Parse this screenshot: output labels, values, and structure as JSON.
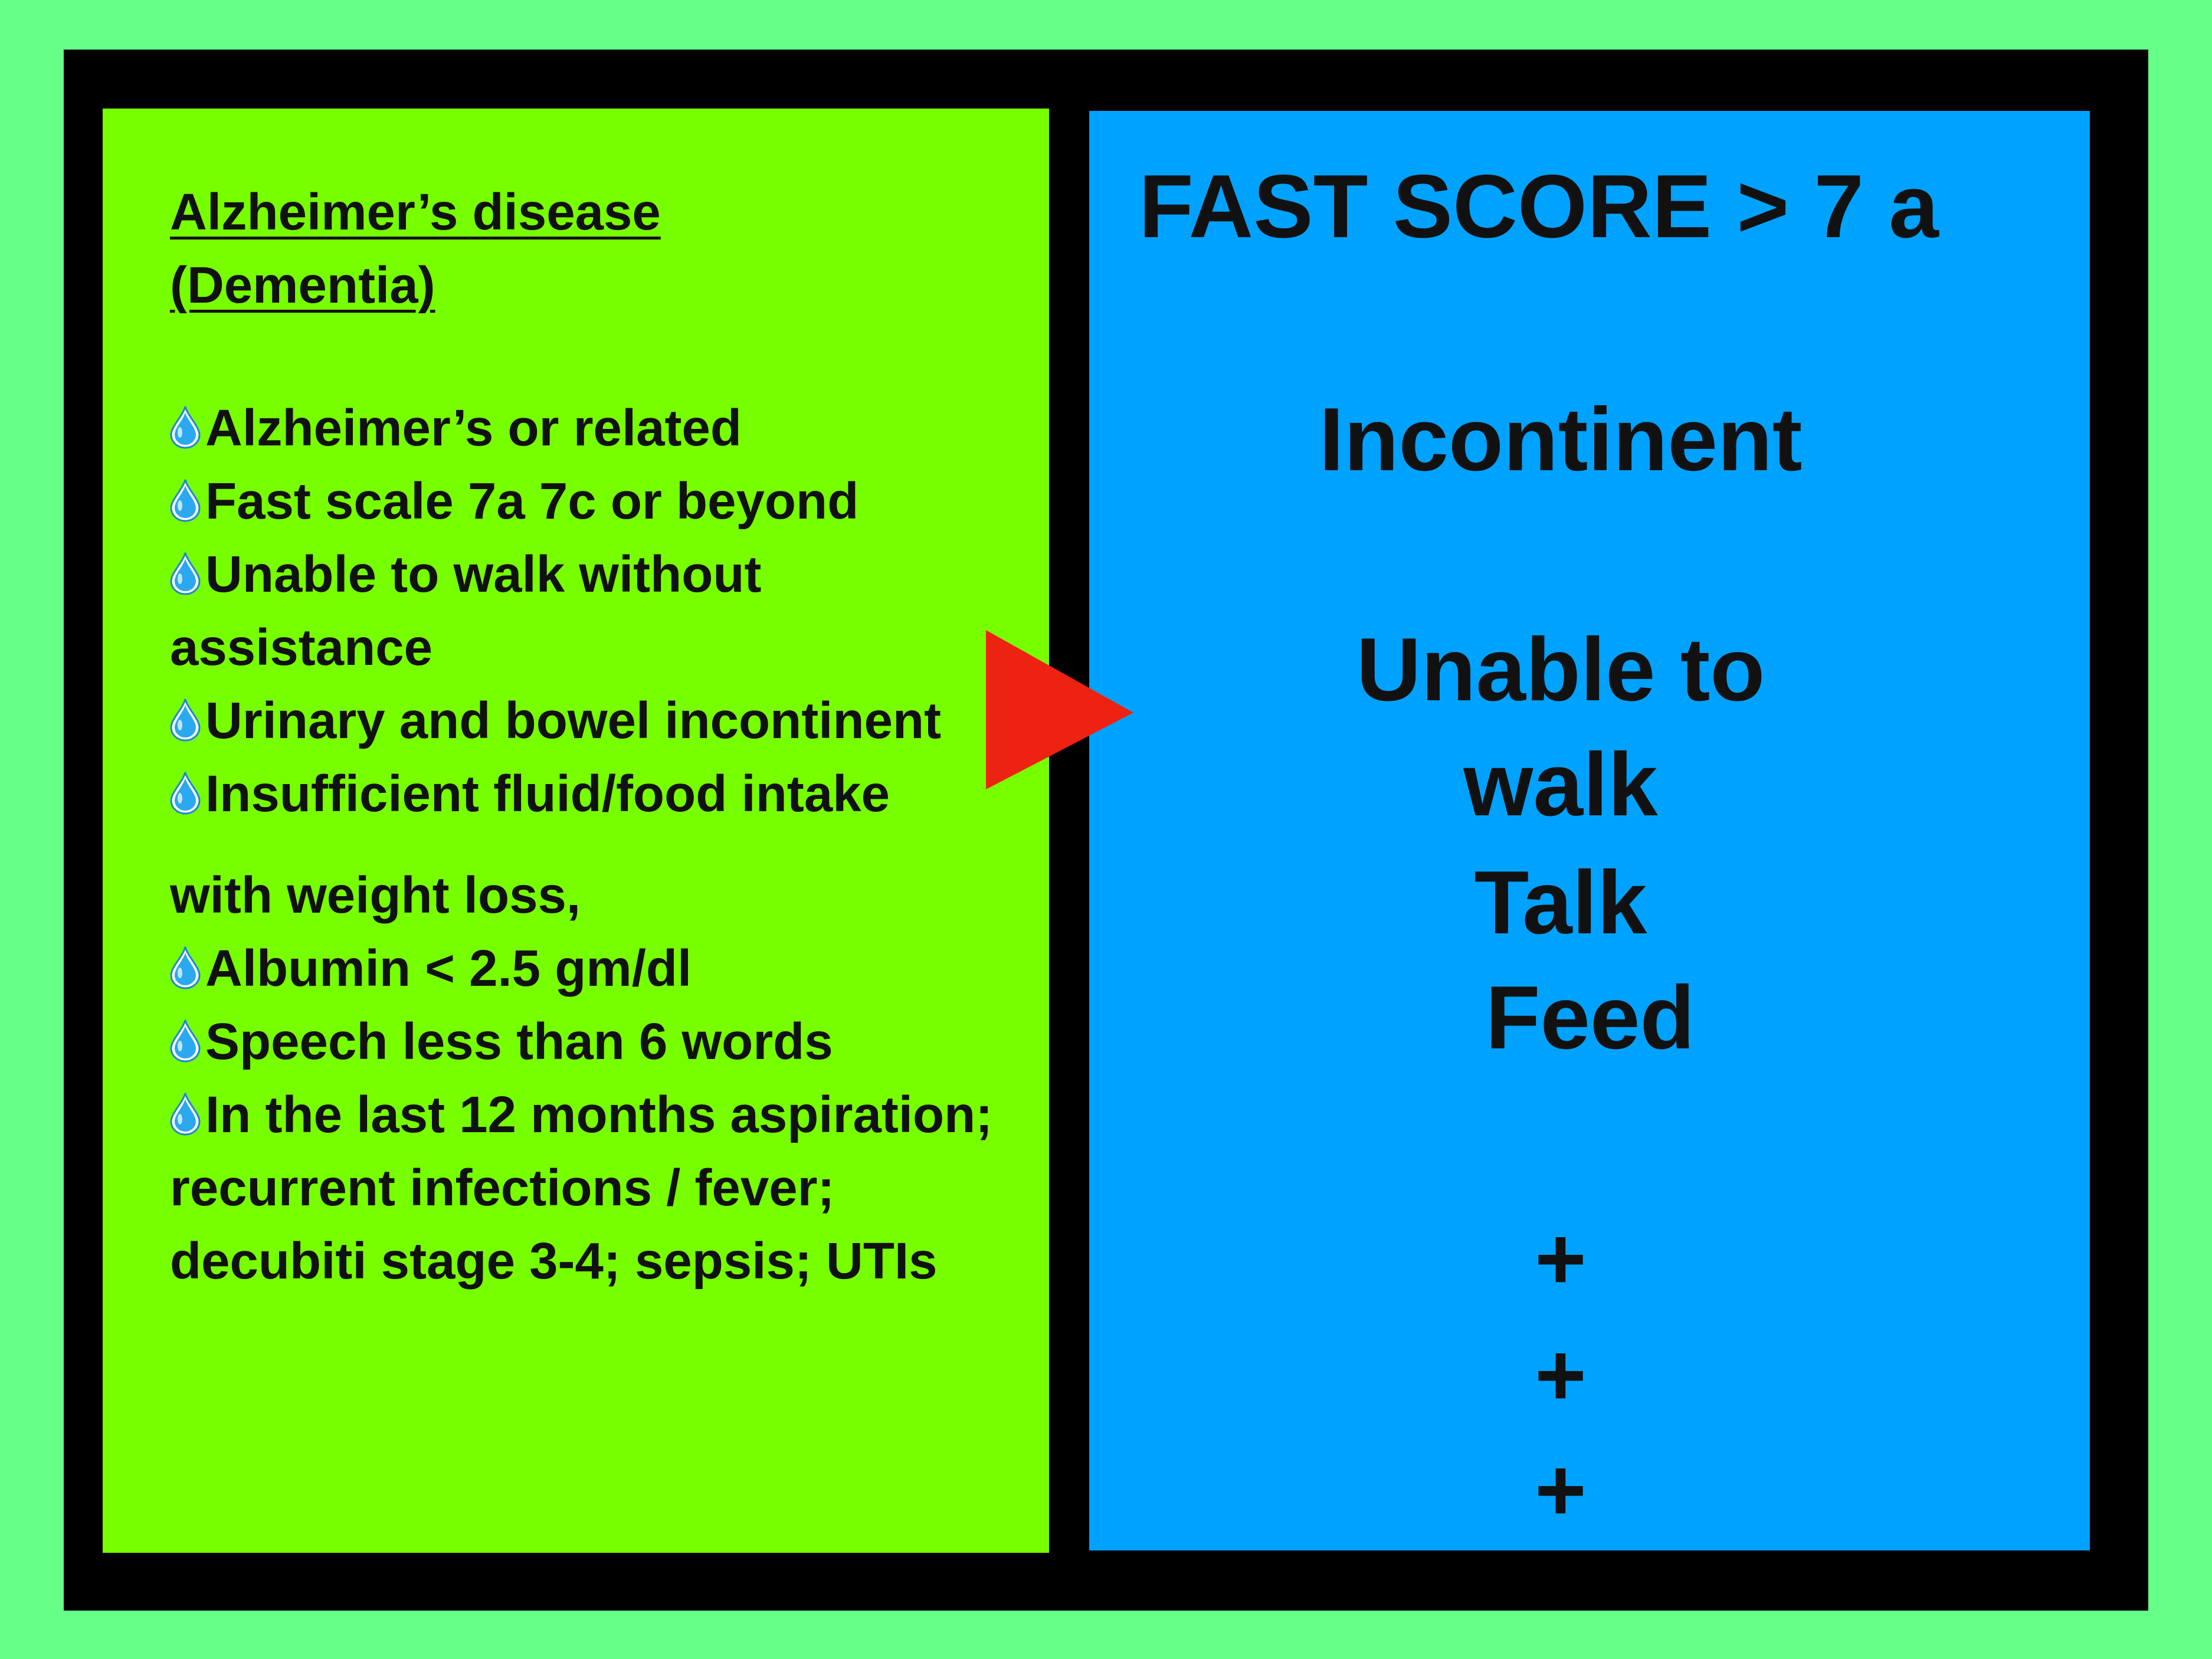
{
  "left_panel": {
    "title_line1": "Alzheimer’s disease",
    "title_line2": "(Dementia)",
    "items": [
      "Alzheimer’s or related",
      "Fast scale 7a 7c or beyond",
      "Unable to walk without assistance",
      "Urinary and bowel incontinent",
      "Insufficient fluid/food intake",
      "with weight  loss,",
      "Albumin < 2.5 gm/dl",
      "Speech less than 6 words",
      "In the last 12 months aspiration; recurrent infections / fever; decubiti stage 3-4; sepsis; UTIs"
    ]
  },
  "right_panel": {
    "heading": "FAST SCORE > 7 a",
    "lines": [
      "Incontinent",
      "Unable to",
      "walk",
      "Talk",
      "Feed"
    ],
    "plus_signs": [
      "+",
      "+",
      "+"
    ]
  },
  "icons": {
    "bullet": "water-drop-icon",
    "arrow": "red-triangle-arrow-icon"
  },
  "colors": {
    "page_background": "#66ff88",
    "frame": "#000000",
    "left_panel": "#77ff00",
    "right_panel": "#00a2ff",
    "arrow": "#ee2211",
    "drop": "#2aa8f0"
  }
}
